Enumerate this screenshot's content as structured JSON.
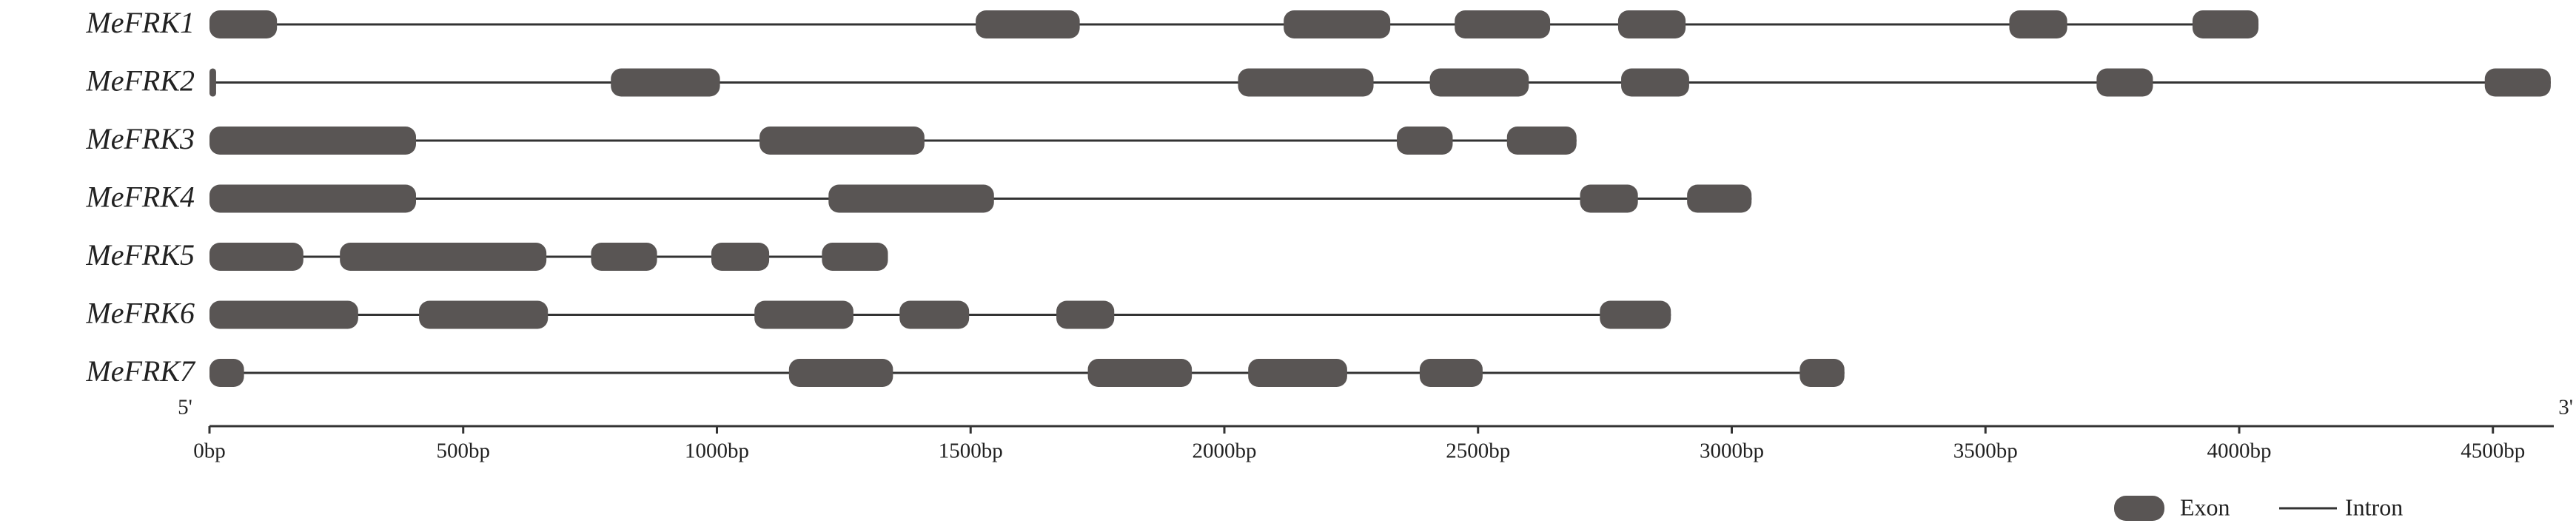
{
  "chart_data": {
    "type": "gantt",
    "color": "#595554",
    "xlim": [
      0,
      4620
    ],
    "xticks": [
      {
        "value": 0,
        "label": "0bp"
      },
      {
        "value": 500,
        "label": "500bp"
      },
      {
        "value": 1000,
        "label": "1000bp"
      },
      {
        "value": 1500,
        "label": "1500bp"
      },
      {
        "value": 2000,
        "label": "2000bp"
      },
      {
        "value": 2500,
        "label": "2500bp"
      },
      {
        "value": 3000,
        "label": "3000bp"
      },
      {
        "value": 3500,
        "label": "3500bp"
      },
      {
        "value": 4000,
        "label": "4000bp"
      },
      {
        "value": 4500,
        "label": "4500bp"
      }
    ],
    "axis_start_label": "5'",
    "axis_end_label": "3'",
    "legend": {
      "exon": "Exon",
      "intron": "Intron"
    },
    "genes": [
      {
        "name": "MeFRK1",
        "exons": [
          [
            0,
            133
          ],
          [
            1510,
            1715
          ],
          [
            2117,
            2327
          ],
          [
            2454,
            2642
          ],
          [
            2776,
            2909
          ],
          [
            3547,
            3661
          ],
          [
            3908,
            4038
          ]
        ]
      },
      {
        "name": "MeFRK2",
        "exons": [
          [
            0,
            13
          ],
          [
            791,
            1006
          ],
          [
            2027,
            2294
          ],
          [
            2405,
            2600
          ],
          [
            2782,
            2916
          ],
          [
            3719,
            3830
          ],
          [
            4484,
            4614
          ]
        ]
      },
      {
        "name": "MeFRK3",
        "exons": [
          [
            0,
            407
          ],
          [
            1084,
            1409
          ],
          [
            2340,
            2450
          ],
          [
            2557,
            2694
          ]
        ]
      },
      {
        "name": "MeFRK4",
        "exons": [
          [
            0,
            407
          ],
          [
            1220,
            1546
          ],
          [
            2701,
            2815
          ],
          [
            2912,
            3039
          ]
        ]
      },
      {
        "name": "MeFRK5",
        "exons": [
          [
            0,
            185
          ],
          [
            257,
            664
          ],
          [
            752,
            882
          ],
          [
            989,
            1103
          ],
          [
            1207,
            1337
          ]
        ]
      },
      {
        "name": "MeFRK6",
        "exons": [
          [
            0,
            293
          ],
          [
            413,
            667
          ],
          [
            1074,
            1269
          ],
          [
            1360,
            1497
          ],
          [
            1669,
            1783
          ],
          [
            2740,
            2880
          ]
        ]
      },
      {
        "name": "MeFRK7",
        "exons": [
          [
            0,
            68
          ],
          [
            1142,
            1347
          ],
          [
            1731,
            1936
          ],
          [
            2047,
            2242
          ],
          [
            2385,
            2509
          ],
          [
            3134,
            3222
          ]
        ]
      }
    ]
  }
}
